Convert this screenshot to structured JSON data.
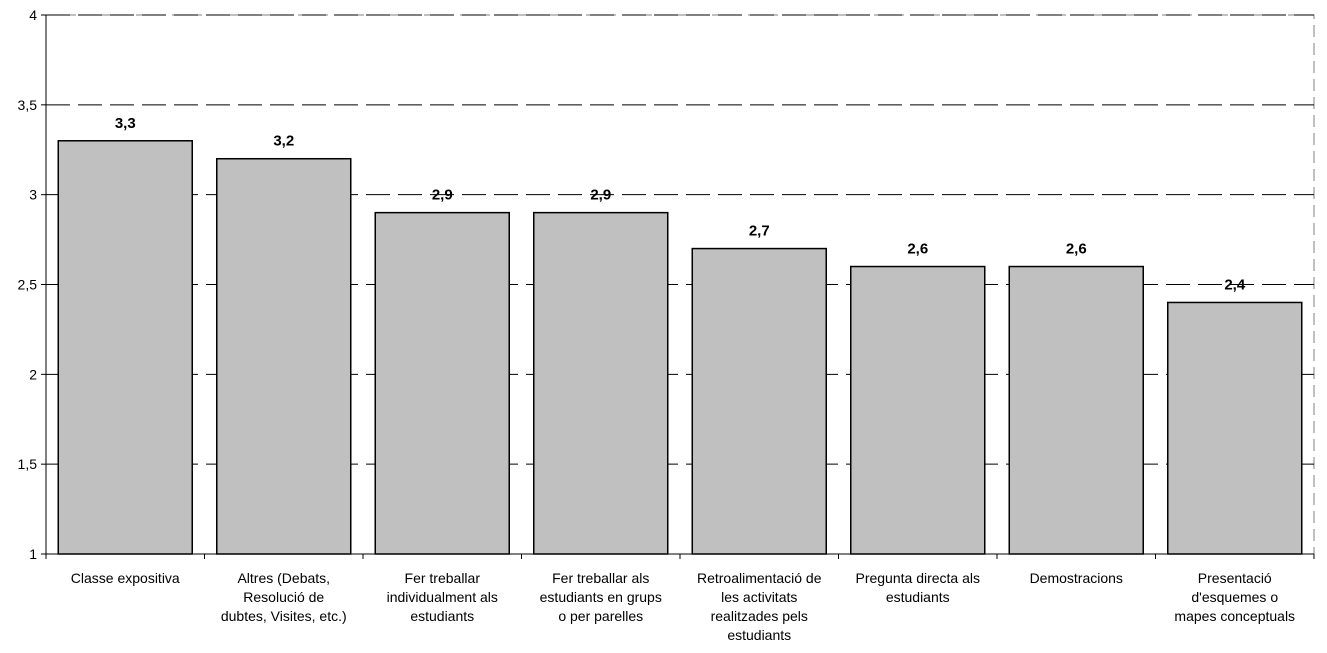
{
  "chart_data": {
    "type": "bar",
    "title": "",
    "xlabel": "",
    "ylabel": "",
    "ylim": [
      1,
      4
    ],
    "yticks": [
      "1",
      "1,5",
      "2",
      "2,5",
      "3",
      "3,5",
      "4"
    ],
    "ytick_values": [
      1,
      1.5,
      2,
      2.5,
      3,
      3.5,
      4
    ],
    "grid": "horizontal dashed",
    "legend": "none",
    "bar_color": "#c0c0c0",
    "categories": [
      [
        "Classe expositiva"
      ],
      [
        "Altres (Debats,",
        "Resolució de",
        "dubtes, Visites, etc.)"
      ],
      [
        "Fer treballar",
        "individualment als",
        "estudiants"
      ],
      [
        "Fer treballar als",
        "estudiants en grups",
        "o per parelles"
      ],
      [
        "Retroalimentació de",
        "les activitats",
        "realitzades pels",
        "estudiants"
      ],
      [
        "Pregunta directa als",
        "estudiants"
      ],
      [
        "Demostracions"
      ],
      [
        "Presentació",
        "d'esquemes o",
        "mapes conceptuals"
      ]
    ],
    "values": [
      3.3,
      3.2,
      2.9,
      2.9,
      2.7,
      2.6,
      2.6,
      2.4
    ],
    "data_labels": [
      "3,3",
      "3,2",
      "2,9",
      "2,9",
      "2,7",
      "2,6",
      "2,6",
      "2,4"
    ]
  }
}
